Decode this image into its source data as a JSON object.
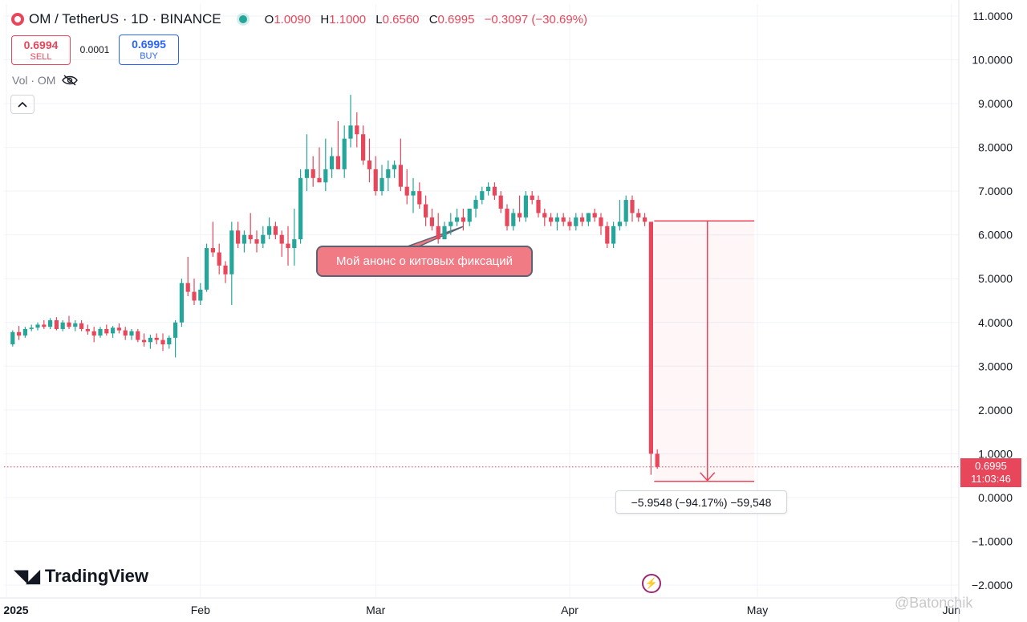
{
  "header": {
    "title": "OM / TetherUS · 1D · BINANCE",
    "ohlc": {
      "o_label": "O",
      "o": "1.0090",
      "h_label": "H",
      "h": "1.1000",
      "l_label": "L",
      "l": "0.6560",
      "c_label": "C",
      "c": "0.6995",
      "change": "−0.3097 (−30.69%)"
    }
  },
  "trade": {
    "sell_price": "0.6994",
    "sell_label": "SELL",
    "spread": "0.0001",
    "buy_price": "0.6995",
    "buy_label": "BUY"
  },
  "volume": {
    "label": "Vol · OM"
  },
  "annotation": "Мой анонс о китовых фиксаций",
  "measure": "−5.9548 (−94.17%) −59,548",
  "price_tag": {
    "price": "0.6995",
    "countdown": "11:03:46"
  },
  "branding": {
    "logo": "TradingView",
    "watermark": "@Batonchik"
  },
  "colors": {
    "up": "#26a69a",
    "down": "#e8465a",
    "grid": "#f0f3fa"
  },
  "icons": [
    "eye-off-icon",
    "chevron-up-icon",
    "flash-icon"
  ],
  "chart_data": {
    "type": "candlestick",
    "y_ticks": [
      "11.0000",
      "10.0000",
      "9.0000",
      "8.0000",
      "7.0000",
      "6.0000",
      "5.0000",
      "4.0000",
      "3.0000",
      "2.0000",
      "1.0000",
      "0.0000",
      "−1.0000",
      "−2.0000"
    ],
    "x_ticks": [
      "2025",
      "Feb",
      "Mar",
      "Apr",
      "May",
      "Jun"
    ],
    "ylim": [
      -2.3,
      11.4
    ],
    "start_date": "2025-01-01",
    "x_end_date": "2025-06-06",
    "last_price": 0.6995,
    "candles": [
      [
        3.5,
        3.82,
        3.45,
        3.78
      ],
      [
        3.78,
        3.92,
        3.6,
        3.7
      ],
      [
        3.7,
        3.9,
        3.65,
        3.85
      ],
      [
        3.85,
        3.95,
        3.8,
        3.88
      ],
      [
        3.88,
        4.0,
        3.82,
        3.95
      ],
      [
        3.95,
        4.05,
        3.85,
        3.9
      ],
      [
        3.9,
        4.1,
        3.85,
        4.05
      ],
      [
        4.05,
        4.12,
        3.82,
        3.85
      ],
      [
        3.85,
        4.05,
        3.8,
        4.0
      ],
      [
        4.0,
        4.15,
        3.85,
        3.9
      ],
      [
        3.9,
        4.05,
        3.8,
        3.98
      ],
      [
        3.98,
        4.05,
        3.8,
        3.85
      ],
      [
        3.85,
        3.95,
        3.72,
        3.8
      ],
      [
        3.8,
        3.9,
        3.55,
        3.7
      ],
      [
        3.7,
        3.9,
        3.65,
        3.85
      ],
      [
        3.85,
        3.95,
        3.7,
        3.75
      ],
      [
        3.75,
        3.92,
        3.65,
        3.88
      ],
      [
        3.88,
        3.98,
        3.75,
        3.82
      ],
      [
        3.82,
        3.9,
        3.6,
        3.7
      ],
      [
        3.7,
        3.85,
        3.6,
        3.8
      ],
      [
        3.8,
        3.85,
        3.55,
        3.6
      ],
      [
        3.6,
        3.75,
        3.45,
        3.55
      ],
      [
        3.55,
        3.72,
        3.4,
        3.65
      ],
      [
        3.65,
        3.75,
        3.5,
        3.6
      ],
      [
        3.6,
        3.75,
        3.35,
        3.5
      ],
      [
        3.5,
        3.7,
        3.4,
        3.65
      ],
      [
        3.65,
        4.05,
        3.2,
        4.0
      ],
      [
        4.0,
        5.0,
        3.9,
        4.9
      ],
      [
        4.9,
        5.5,
        4.6,
        4.7
      ],
      [
        4.7,
        5.0,
        4.4,
        4.5
      ],
      [
        4.5,
        4.9,
        4.4,
        4.75
      ],
      [
        4.75,
        5.8,
        4.7,
        5.7
      ],
      [
        5.7,
        6.3,
        5.5,
        5.6
      ],
      [
        5.6,
        5.8,
        5.1,
        5.3
      ],
      [
        5.3,
        5.4,
        4.9,
        5.1
      ],
      [
        5.1,
        6.3,
        4.4,
        6.1
      ],
      [
        6.1,
        6.3,
        5.7,
        5.8
      ],
      [
        5.8,
        6.1,
        5.6,
        6.0
      ],
      [
        6.0,
        6.5,
        5.8,
        5.9
      ],
      [
        5.9,
        6.1,
        5.6,
        5.8
      ],
      [
        5.8,
        6.2,
        5.7,
        6.0
      ],
      [
        6.0,
        6.4,
        5.9,
        6.2
      ],
      [
        6.2,
        6.3,
        5.9,
        6.0
      ],
      [
        6.0,
        6.1,
        5.5,
        5.8
      ],
      [
        5.8,
        6.2,
        5.3,
        5.7
      ],
      [
        5.7,
        6.6,
        5.3,
        5.9
      ],
      [
        5.9,
        7.5,
        5.8,
        7.3
      ],
      [
        7.3,
        8.3,
        7.0,
        7.5
      ],
      [
        7.5,
        7.8,
        7.1,
        7.3
      ],
      [
        7.3,
        8.0,
        7.2,
        7.2
      ],
      [
        7.2,
        8.2,
        7.0,
        7.5
      ],
      [
        7.5,
        8.0,
        7.3,
        7.8
      ],
      [
        7.8,
        8.6,
        7.5,
        7.5
      ],
      [
        7.5,
        8.5,
        7.3,
        8.2
      ],
      [
        8.2,
        9.2,
        8.0,
        8.5
      ],
      [
        8.5,
        8.8,
        8.0,
        8.3
      ],
      [
        8.3,
        8.5,
        7.6,
        7.7
      ],
      [
        7.7,
        8.2,
        7.2,
        7.5
      ],
      [
        7.5,
        7.8,
        6.9,
        7.0
      ],
      [
        7.0,
        7.6,
        6.9,
        7.3
      ],
      [
        7.3,
        7.7,
        7.0,
        7.5
      ],
      [
        7.5,
        7.7,
        7.3,
        7.6
      ],
      [
        7.6,
        8.2,
        7.0,
        7.1
      ],
      [
        7.1,
        7.5,
        6.7,
        6.9
      ],
      [
        6.9,
        7.3,
        6.5,
        7.0
      ],
      [
        7.0,
        7.2,
        6.6,
        6.7
      ],
      [
        6.7,
        6.9,
        6.2,
        6.4
      ],
      [
        6.4,
        6.6,
        6.1,
        6.2
      ],
      [
        6.2,
        6.5,
        5.8,
        5.9
      ],
      [
        5.9,
        6.3,
        5.9,
        6.2
      ],
      [
        6.2,
        6.5,
        6.0,
        6.3
      ],
      [
        6.3,
        6.6,
        6.2,
        6.4
      ],
      [
        6.4,
        6.6,
        6.1,
        6.3
      ],
      [
        6.3,
        6.6,
        6.2,
        6.6
      ],
      [
        6.6,
        6.9,
        6.4,
        6.8
      ],
      [
        6.8,
        7.1,
        6.7,
        7.0
      ],
      [
        7.0,
        7.2,
        6.9,
        7.1
      ],
      [
        7.1,
        7.2,
        6.8,
        6.9
      ],
      [
        6.9,
        7.0,
        6.5,
        6.6
      ],
      [
        6.6,
        6.7,
        6.1,
        6.2
      ],
      [
        6.2,
        6.6,
        6.1,
        6.5
      ],
      [
        6.5,
        6.9,
        6.3,
        6.4
      ],
      [
        6.4,
        7.0,
        6.3,
        6.9
      ],
      [
        6.9,
        7.0,
        6.7,
        6.8
      ],
      [
        6.8,
        6.9,
        6.4,
        6.5
      ],
      [
        6.5,
        6.6,
        6.2,
        6.4
      ],
      [
        6.4,
        6.5,
        6.2,
        6.3
      ],
      [
        6.3,
        6.5,
        6.1,
        6.4
      ],
      [
        6.4,
        6.5,
        6.2,
        6.3
      ],
      [
        6.3,
        6.4,
        6.1,
        6.2
      ],
      [
        6.2,
        6.5,
        6.1,
        6.4
      ],
      [
        6.4,
        6.5,
        6.2,
        6.3
      ],
      [
        6.3,
        6.5,
        6.2,
        6.5
      ],
      [
        6.5,
        6.6,
        6.3,
        6.4
      ],
      [
        6.4,
        6.5,
        6.0,
        6.2
      ],
      [
        6.2,
        6.3,
        5.7,
        5.8
      ],
      [
        5.8,
        6.3,
        5.7,
        6.2
      ],
      [
        6.2,
        6.8,
        6.1,
        6.3
      ],
      [
        6.3,
        6.9,
        6.2,
        6.8
      ],
      [
        6.8,
        6.9,
        6.3,
        6.5
      ],
      [
        6.5,
        6.6,
        6.3,
        6.4
      ],
      [
        6.4,
        6.5,
        6.2,
        6.3
      ],
      [
        6.3,
        6.3,
        0.52,
        1.0
      ],
      [
        1.0,
        1.1,
        0.656,
        0.6995
      ]
    ],
    "measure_range": {
      "from": 6.32,
      "to": 0.37
    }
  }
}
